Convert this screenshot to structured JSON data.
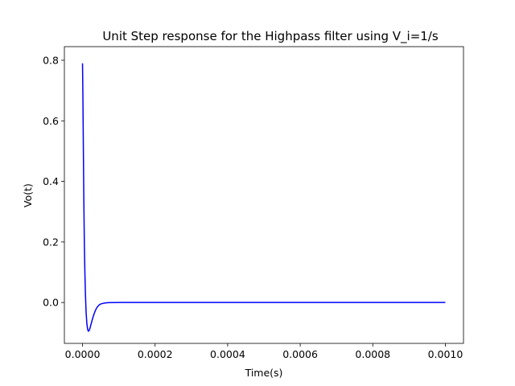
{
  "chart_data": {
    "type": "line",
    "title": "Unit Step response for the Highpass filter using V_i=1/s",
    "xlabel": "Time(s)",
    "ylabel": "Vo(t)",
    "xlim": [
      -5e-05,
      0.00105
    ],
    "ylim": [
      -0.135,
      0.845
    ],
    "grid": false,
    "x_ticks": [
      {
        "value": 0.0,
        "label": "0.0000"
      },
      {
        "value": 0.0002,
        "label": "0.0002"
      },
      {
        "value": 0.0004,
        "label": "0.0004"
      },
      {
        "value": 0.0006,
        "label": "0.0006"
      },
      {
        "value": 0.0008,
        "label": "0.0008"
      },
      {
        "value": 0.001,
        "label": "0.0010"
      }
    ],
    "y_ticks": [
      {
        "value": 0.0,
        "label": "0.0"
      },
      {
        "value": 0.2,
        "label": "0.2"
      },
      {
        "value": 0.4,
        "label": "0.4"
      },
      {
        "value": 0.6,
        "label": "0.6"
      },
      {
        "value": 0.8,
        "label": "0.8"
      }
    ],
    "series": [
      {
        "color": "#0000ff",
        "x": [
          0.0,
          1e-06,
          2e-06,
          3e-06,
          4e-06,
          5e-06,
          6.5e-06,
          8e-06,
          1e-05,
          1.2e-05,
          1.4e-05,
          1.6e-05,
          1.8e-05,
          2e-05,
          2.2e-05,
          2.5e-05,
          2.8e-05,
          3.2e-05,
          3.6e-05,
          4e-05,
          4.5e-05,
          5e-05,
          5.6e-05,
          6.2e-05,
          7e-05,
          8e-05,
          9e-05,
          0.0001,
          0.00011,
          0.00012,
          0.00014,
          0.00017,
          0.0002,
          0.0003,
          0.0004,
          0.0005,
          0.0006,
          0.0007,
          0.0008,
          0.0009,
          0.001
        ],
        "y": [
          0.79,
          0.69,
          0.55,
          0.42,
          0.3,
          0.2,
          0.1,
          0.03,
          -0.035,
          -0.07,
          -0.088,
          -0.095,
          -0.093,
          -0.087,
          -0.078,
          -0.065,
          -0.052,
          -0.037,
          -0.025,
          -0.016,
          -0.009,
          -0.005,
          -0.003,
          -0.0015,
          -0.0007,
          -0.0003,
          -0.0001,
          0.0,
          0.0,
          0.0,
          0.0,
          0.0,
          0.0,
          0.0,
          0.0,
          0.0,
          0.0,
          0.0,
          0.0,
          0.0,
          0.0
        ]
      }
    ]
  }
}
